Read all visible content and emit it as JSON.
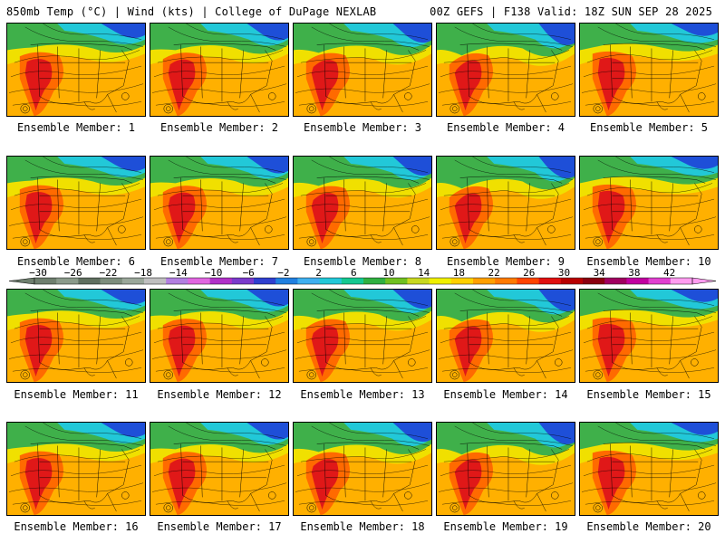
{
  "header": {
    "left": "850mb Temp (°C) | Wind (kts) | College of DuPage NEXLAB",
    "right": "00Z GEFS | F138 Valid: 18Z SUN SEP 28 2025"
  },
  "member_label_prefix": "Ensemble Member: ",
  "members": [
    {
      "label": "Ensemble Member: 1",
      "member": 1
    },
    {
      "label": "Ensemble Member: 2",
      "member": 2
    },
    {
      "label": "Ensemble Member: 3",
      "member": 3
    },
    {
      "label": "Ensemble Member: 4",
      "member": 4
    },
    {
      "label": "Ensemble Member: 5",
      "member": 5
    },
    {
      "label": "Ensemble Member: 6",
      "member": 6
    },
    {
      "label": "Ensemble Member: 7",
      "member": 7
    },
    {
      "label": "Ensemble Member: 8",
      "member": 8
    },
    {
      "label": "Ensemble Member: 9",
      "member": 9
    },
    {
      "label": "Ensemble Member: 10",
      "member": 10
    },
    {
      "label": "Ensemble Member: 11",
      "member": 11
    },
    {
      "label": "Ensemble Member: 12",
      "member": 12
    },
    {
      "label": "Ensemble Member: 13",
      "member": 13
    },
    {
      "label": "Ensemble Member: 14",
      "member": 14
    },
    {
      "label": "Ensemble Member: 15",
      "member": 15
    },
    {
      "label": "Ensemble Member: 16",
      "member": 16
    },
    {
      "label": "Ensemble Member: 17",
      "member": 17
    },
    {
      "label": "Ensemble Member: 18",
      "member": 18
    },
    {
      "label": "Ensemble Member: 19",
      "member": 19
    },
    {
      "label": "Ensemble Member: 20",
      "member": 20
    }
  ],
  "colorbar": {
    "ticks": [
      "-30",
      "-26",
      "-22",
      "-18",
      "-14",
      "-10",
      "-6",
      "-2",
      "2",
      "6",
      "10",
      "14",
      "18",
      "22",
      "26",
      "30",
      "34",
      "38",
      "42"
    ],
    "colors": [
      "#6e7f6e",
      "#8a9a8a",
      "#5f6f5f",
      "#7d8d7d",
      "#9aa79a",
      "#bfbfbf",
      "#b27fe0",
      "#e066e0",
      "#b030c8",
      "#7a3acb",
      "#2f3fcf",
      "#2080e0",
      "#3fb0f0",
      "#22c8d8",
      "#14c890",
      "#2fb040",
      "#70c020",
      "#c8d820",
      "#f0f000",
      "#ffd000",
      "#ffa000",
      "#ff7a00",
      "#ff4400",
      "#e01010",
      "#b80000",
      "#8a0010",
      "#a00060",
      "#c000a0",
      "#e040d0",
      "#ff9cf0"
    ]
  },
  "colors": {
    "cold_n": "#1e4fd8",
    "cyan": "#22c8d8",
    "green": "#3fb04a",
    "yellow": "#f0e000",
    "orange": "#ffb000",
    "hot": "#ff6a00",
    "red": "#e01818"
  }
}
